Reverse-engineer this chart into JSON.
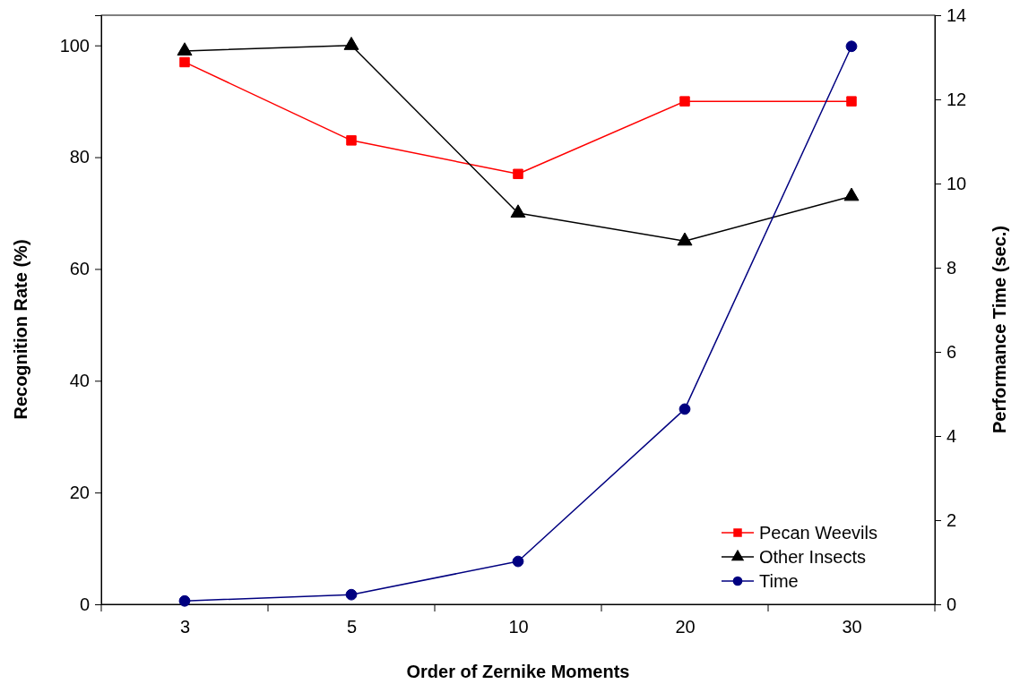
{
  "chart_data": {
    "type": "line",
    "xlabel": "Order of Zernike Moments",
    "ylabel": "Recognition Rate (%)",
    "y2label": "Performance Time (sec.)",
    "categories": [
      "3",
      "5",
      "10",
      "20",
      "30"
    ],
    "series": [
      {
        "name": "Pecan Weevils",
        "color": "#ff0000",
        "marker": "square",
        "values": [
          97,
          83,
          77,
          90,
          90
        ]
      },
      {
        "name": "Other Insects",
        "color": "#000000",
        "marker": "triangle",
        "values": [
          99,
          100,
          70,
          65,
          73
        ]
      },
      {
        "name": "Time",
        "color": "#000080",
        "marker": "circle",
        "axis": "y2",
        "values": [
          0.08,
          0.23,
          1.02,
          4.64,
          13.26
        ]
      }
    ],
    "ylim": [
      0,
      105.4
    ],
    "yticks": [
      0,
      20,
      40,
      60,
      80,
      100
    ],
    "y2lim": [
      0,
      14
    ],
    "y2ticks": [
      0,
      2,
      4,
      6,
      8,
      10,
      12,
      14
    ],
    "grid": false,
    "legend": "bottom right",
    "line_style": "solid"
  }
}
